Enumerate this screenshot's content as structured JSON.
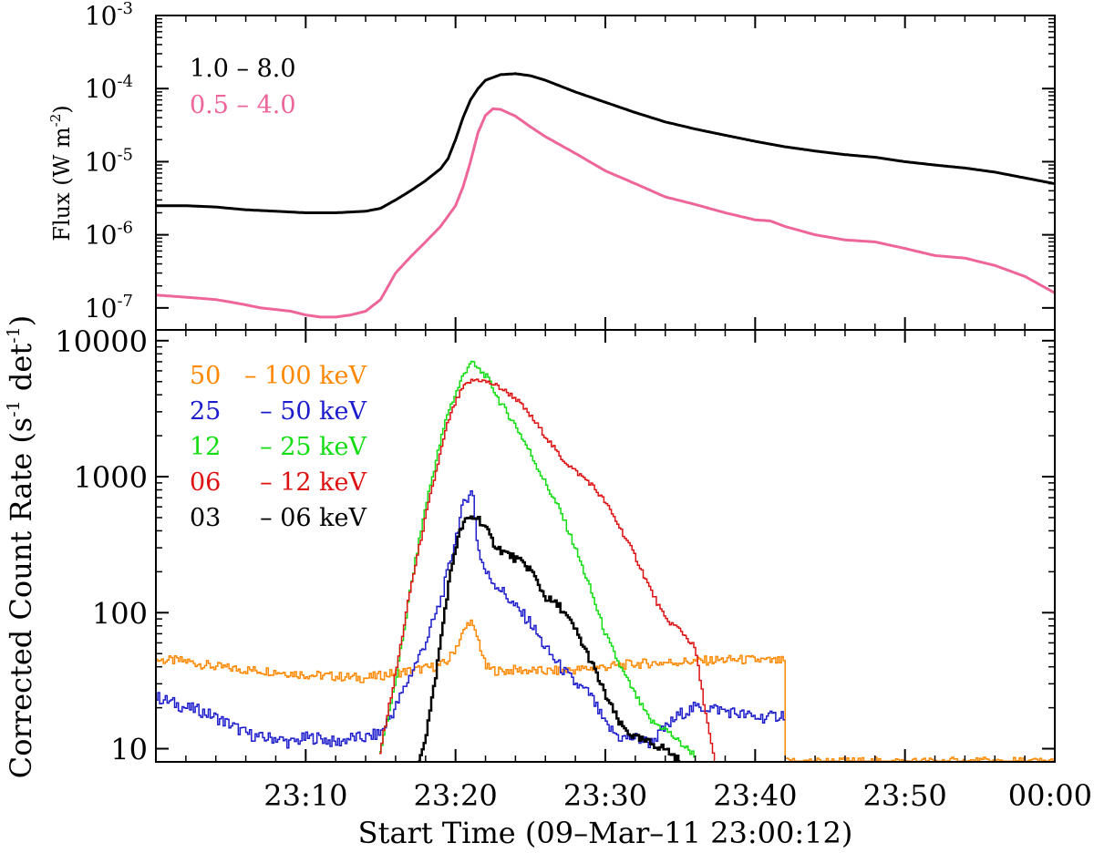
{
  "chart_data": [
    {
      "type": "line",
      "panel": "goes",
      "title": "",
      "xlabel": "",
      "ylabel": "Flux (W m",
      "ylabel_sup": "-2",
      "ylabel_close": ")",
      "yscale": "log",
      "ylim": [
        5e-08,
        0.001
      ],
      "xlim_minutes": [
        0,
        60
      ],
      "grid": false,
      "legend_placement": "top-left",
      "ytick_values": [
        1e-07,
        1e-06,
        1e-05,
        0.0001,
        0.001
      ],
      "ytick_labels": [
        {
          "base": "10",
          "exp": "-7"
        },
        {
          "base": "10",
          "exp": "-6"
        },
        {
          "base": "10",
          "exp": "-5"
        },
        {
          "base": "10",
          "exp": "-4"
        },
        {
          "base": "10",
          "exp": "-3"
        }
      ],
      "x_note": "x values are minutes after 23:00",
      "series": [
        {
          "name": "1.0 – 8.0",
          "color": "#000000",
          "x": [
            0,
            2,
            4,
            6,
            8,
            10,
            12,
            14,
            15,
            16,
            17,
            18,
            19,
            19.5,
            20,
            20.5,
            21,
            21.5,
            22,
            23,
            24,
            25,
            26,
            28,
            30,
            32,
            34,
            36,
            38,
            40,
            42,
            44,
            46,
            48,
            50,
            52,
            54,
            56,
            58,
            60
          ],
          "y": [
            2.5e-06,
            2.5e-06,
            2.4e-06,
            2.2e-06,
            2.1e-06,
            2e-06,
            2e-06,
            2.1e-06,
            2.3e-06,
            3e-06,
            4e-06,
            5.5e-06,
            8e-06,
            1.1e-05,
            2e-05,
            4e-05,
            7e-05,
            0.0001,
            0.00013,
            0.000155,
            0.00016,
            0.00015,
            0.00013,
            9e-05,
            6.5e-05,
            4.7e-05,
            3.5e-05,
            2.8e-05,
            2.3e-05,
            1.9e-05,
            1.6e-05,
            1.4e-05,
            1.25e-05,
            1.15e-05,
            1e-05,
            9e-06,
            8.2e-06,
            7.2e-06,
            6e-06,
            5e-06
          ]
        },
        {
          "name": "0.5 – 4.0",
          "color": "#ee6699",
          "x": [
            0,
            1,
            2,
            3,
            4,
            5,
            6,
            7,
            8,
            9,
            10,
            11,
            12,
            13,
            14,
            15,
            16,
            17,
            18,
            19,
            20,
            20.5,
            21,
            21.5,
            22,
            22.5,
            23,
            24,
            25,
            26,
            28,
            30,
            32,
            34,
            36,
            38,
            40,
            41,
            42,
            44,
            46,
            48,
            50,
            52,
            54,
            56,
            58,
            60
          ],
          "y": [
            1.5e-07,
            1.45e-07,
            1.4e-07,
            1.35e-07,
            1.3e-07,
            1.2e-07,
            1.1e-07,
            1e-07,
            9.5e-08,
            9e-08,
            8e-08,
            7.5e-08,
            7.5e-08,
            8e-08,
            9e-08,
            1.3e-07,
            3e-07,
            5e-07,
            8e-07,
            1.3e-06,
            2.5e-06,
            4.5e-06,
            1e-05,
            2.5e-05,
            4.3e-05,
            5.3e-05,
            5.2e-05,
            4.2e-05,
            3e-05,
            2.2e-05,
            1.3e-05,
            7.5e-06,
            5e-06,
            3.3e-06,
            2.6e-06,
            2e-06,
            1.6e-06,
            1.55e-06,
            1.3e-06,
            1e-06,
            8.5e-07,
            8e-07,
            6.5e-07,
            5.2e-07,
            4.8e-07,
            3.8e-07,
            2.7e-07,
            1.6e-07
          ]
        }
      ]
    },
    {
      "type": "line",
      "panel": "rhessi",
      "title": "",
      "xlabel": "Start Time (09–Mar–11 23:00:12)",
      "ylabel": "Corrected Count Rate (s",
      "ylabel_sup1": "-1",
      "ylabel_mid": " det",
      "ylabel_sup2": "-1",
      "ylabel_close": ")",
      "yscale": "log",
      "ylim": [
        8,
        12000
      ],
      "xlim_minutes": [
        0,
        60
      ],
      "grid": false,
      "legend_placement": "top-left",
      "ytick_values": [
        10,
        100,
        1000,
        10000
      ],
      "ytick_labels": [
        "10",
        "100",
        "1000",
        "10000"
      ],
      "xtick_values": [
        10,
        20,
        30,
        40,
        50,
        60
      ],
      "xtick_labels": [
        "23:10",
        "23:20",
        "23:30",
        "23:40",
        "23:50",
        "00:00"
      ],
      "x_note": "x values are minutes after 23:00",
      "series": [
        {
          "legend_a": "50",
          "legend_b": "– 100 keV",
          "color": "#ff8800",
          "x": [
            0,
            2,
            4,
            6,
            8,
            10,
            12,
            14,
            16,
            18,
            19,
            19.5,
            20,
            20.5,
            21,
            21.2,
            21.5,
            21.8,
            22,
            22.5,
            23,
            24,
            26,
            28,
            30,
            32,
            34,
            36,
            38,
            40,
            41,
            42,
            42.05,
            44,
            48,
            52,
            56,
            60
          ],
          "y": [
            45,
            44,
            40,
            38,
            37,
            35,
            34,
            33,
            36,
            39,
            41,
            44,
            55,
            70,
            90,
            75,
            65,
            50,
            40,
            38,
            37,
            38,
            37,
            38,
            40,
            42,
            43,
            44,
            45,
            45,
            44,
            44,
            8,
            8,
            8,
            8,
            8,
            8
          ]
        },
        {
          "legend_a": "25",
          "legend_b": "– 50 keV",
          "color": "#1c1ccc",
          "x": [
            0,
            1,
            2,
            3,
            4,
            5,
            6,
            7,
            8,
            9,
            10,
            11,
            12,
            13,
            14,
            15,
            16,
            17,
            18,
            19,
            19.5,
            20,
            20.5,
            21,
            21.2,
            21.5,
            22,
            22.5,
            23,
            24,
            25,
            26,
            27,
            28,
            29,
            30,
            31,
            32,
            33,
            34,
            35,
            36,
            37,
            38,
            39,
            40,
            41,
            42
          ],
          "y": [
            24,
            22,
            20,
            19,
            17,
            15,
            13,
            12,
            12,
            11,
            12,
            12,
            11,
            12,
            12,
            13,
            20,
            35,
            60,
            120,
            200,
            350,
            600,
            800,
            700,
            300,
            200,
            170,
            150,
            110,
            85,
            55,
            40,
            30,
            25,
            15,
            12,
            12,
            11,
            14,
            18,
            20,
            20,
            19,
            18,
            17,
            17,
            18
          ]
        },
        {
          "legend_a": "12",
          "legend_b": "– 25 keV",
          "color": "#11dd11",
          "x": [
            14.9,
            15,
            16,
            17,
            18,
            19,
            19.5,
            20,
            20.5,
            21,
            21.3,
            21.8,
            22,
            22.5,
            23,
            24,
            25,
            26,
            27,
            28,
            29,
            30,
            31,
            32,
            33,
            34,
            35,
            36
          ],
          "y": [
            8,
            10,
            30,
            150,
            600,
            1800,
            3000,
            4000,
            5500,
            7000,
            6500,
            5800,
            5600,
            4500,
            3500,
            2400,
            1500,
            900,
            560,
            300,
            150,
            70,
            40,
            25,
            16,
            14,
            11,
            9
          ]
        },
        {
          "legend_a": "06",
          "legend_b": "– 12 keV",
          "color": "#dd1111",
          "x": [
            14.9,
            15,
            16,
            17,
            18,
            19,
            19.5,
            20,
            20.5,
            21,
            21.5,
            22,
            22.5,
            23,
            24,
            25,
            26,
            27,
            28,
            29,
            30,
            31,
            32,
            33,
            34,
            35,
            36,
            36.5,
            37,
            37.3
          ],
          "y": [
            8,
            10,
            35,
            150,
            500,
            1500,
            2500,
            3500,
            4500,
            5000,
            5200,
            5000,
            4800,
            4500,
            3800,
            2800,
            2000,
            1400,
            1100,
            900,
            650,
            420,
            260,
            150,
            90,
            75,
            55,
            25,
            12,
            8
          ]
        },
        {
          "legend_a": "03",
          "legend_b": "– 06 keV",
          "color": "#000000",
          "x": [
            17.5,
            18,
            18.5,
            19,
            19.5,
            20,
            20.5,
            21,
            21.5,
            22,
            22.5,
            23,
            24,
            25,
            26,
            27,
            28,
            29,
            30,
            31,
            32,
            33,
            34,
            34.5,
            35
          ],
          "y": [
            8,
            12,
            25,
            60,
            150,
            300,
            450,
            500,
            500,
            420,
            330,
            290,
            250,
            210,
            130,
            110,
            75,
            45,
            25,
            15,
            12,
            11,
            10,
            9,
            8
          ]
        }
      ]
    }
  ]
}
